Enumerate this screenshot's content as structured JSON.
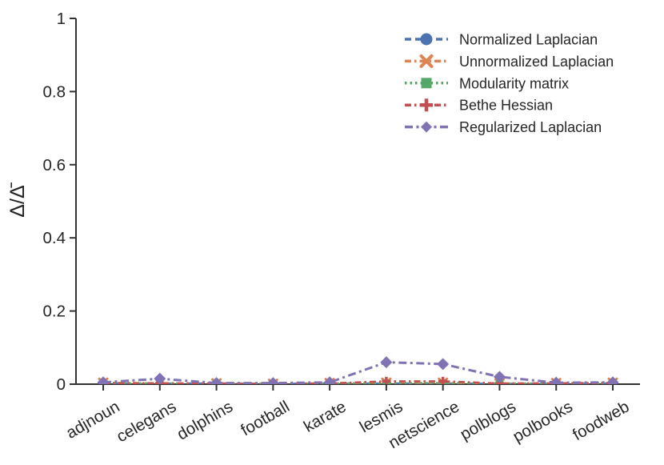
{
  "chart_data": {
    "type": "line",
    "title": "",
    "xlabel": "",
    "ylabel": "Δ/Δ̄",
    "ylim": [
      0,
      1
    ],
    "yticks": [
      0,
      0.2,
      0.4,
      0.6,
      0.8,
      1
    ],
    "ytick_labels": [
      "0",
      "0.2",
      "0.4",
      "0.6",
      "0.8",
      "1"
    ],
    "categories": [
      "adjnoun",
      "celegans",
      "dolphins",
      "football",
      "karate",
      "lesmis",
      "netscience",
      "polblogs",
      "polbooks",
      "foodweb"
    ],
    "grid": false,
    "legend_position": "upper right",
    "axis_color": "#333333",
    "text_color": "#262626",
    "series": [
      {
        "name": "Normalized Laplacian",
        "color": "#4C72B0",
        "marker": "circle",
        "dash": "8 5",
        "values": [
          0.002,
          0.002,
          0.002,
          0.001,
          0.002,
          0.002,
          0.002,
          0.001,
          0.002,
          0.002
        ]
      },
      {
        "name": "Unnormalized Laplacian",
        "color": "#DD8452",
        "marker": "x",
        "dash": "8 4 2.5 4",
        "values": [
          0.004,
          0.003,
          0.002,
          0.001,
          0.003,
          0.004,
          0.004,
          0.002,
          0.003,
          0.004
        ]
      },
      {
        "name": "Modularity matrix",
        "color": "#55A868",
        "marker": "square",
        "dash": "2.5 4",
        "values": [
          0.003,
          0.002,
          0.002,
          0.001,
          0.002,
          0.003,
          0.003,
          0.002,
          0.002,
          0.003
        ]
      },
      {
        "name": "Bethe Hessian",
        "color": "#C44E52",
        "marker": "plus",
        "dash": "8 4 2.5 4",
        "values": [
          0.002,
          0.002,
          0.002,
          0.001,
          0.002,
          0.008,
          0.008,
          0.002,
          0.002,
          0.002
        ]
      },
      {
        "name": "Regularized Laplacian",
        "color": "#8172B3",
        "marker": "diamond",
        "dash": "10 4.5 3 4.5",
        "values": [
          0.005,
          0.015,
          0.003,
          0.003,
          0.005,
          0.06,
          0.055,
          0.02,
          0.004,
          0.005
        ]
      }
    ]
  }
}
